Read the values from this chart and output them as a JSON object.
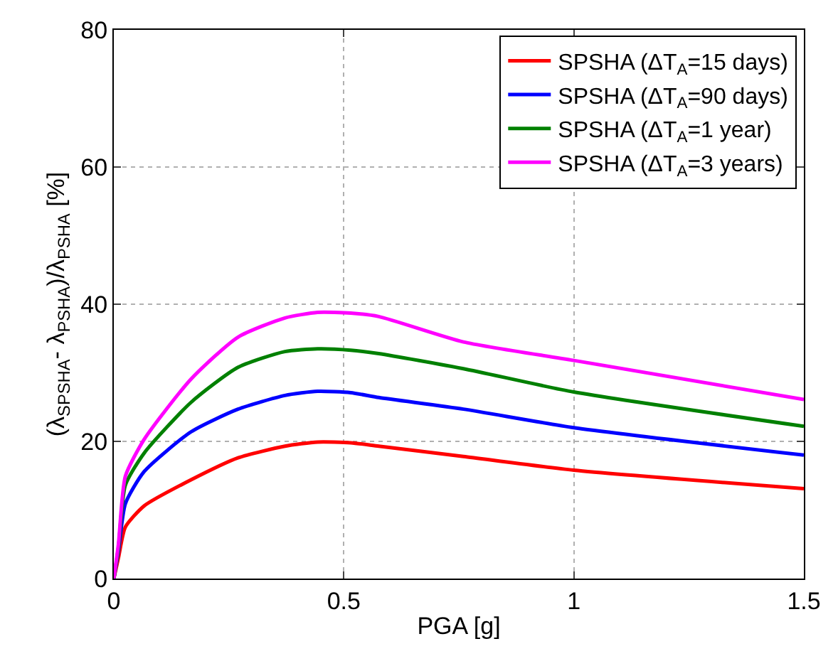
{
  "chart_data": {
    "type": "line",
    "xlabel": "PGA [g]",
    "ylabel": "(λ$_{SPSHA}$- λ$_{PSHA}$)/λ$_{PSHA}$ [%]",
    "x": [
      0,
      0.01,
      0.025,
      0.066,
      0.168,
      0.27,
      0.372,
      0.443,
      0.515,
      0.576,
      0.76,
      1.0,
      1.5
    ],
    "series": [
      {
        "name": "SPSHA (ΔT$_{A}$=15 days)",
        "color": "#ff0000",
        "values": [
          0,
          3,
          7.5,
          10.6,
          14.4,
          17.6,
          19.3,
          19.9,
          19.8,
          19.3,
          17.8,
          15.8,
          13.1
        ]
      },
      {
        "name": "SPSHA (ΔT$_{A}$=90 days)",
        "color": "#0000ff",
        "values": [
          0,
          4,
          10.9,
          15.6,
          21.4,
          24.7,
          26.7,
          27.3,
          27.1,
          26.4,
          24.7,
          22.0,
          18.0
        ]
      },
      {
        "name": "SPSHA (ΔT$_{A}$=1 year)",
        "color": "#008000",
        "values": [
          0,
          4.5,
          13.6,
          18.3,
          25.7,
          30.8,
          33.1,
          33.5,
          33.3,
          32.8,
          30.6,
          27.2,
          22.2
        ]
      },
      {
        "name": "SPSHA (ΔT$_{A}$=3 years)",
        "color": "#ff00ff",
        "values": [
          0,
          5,
          14.9,
          20.3,
          29.1,
          35.2,
          38.0,
          38.8,
          38.7,
          38.2,
          34.5,
          31.8,
          26.1
        ]
      }
    ],
    "xlim": [
      0,
      1.5
    ],
    "xticks": [
      0,
      0.5,
      1,
      1.5
    ],
    "ylim": [
      0,
      80
    ],
    "yticks": [
      0,
      20,
      40,
      60,
      80
    ],
    "grid": true,
    "legend": "top right",
    "line_style": "solid",
    "marker": "none"
  }
}
